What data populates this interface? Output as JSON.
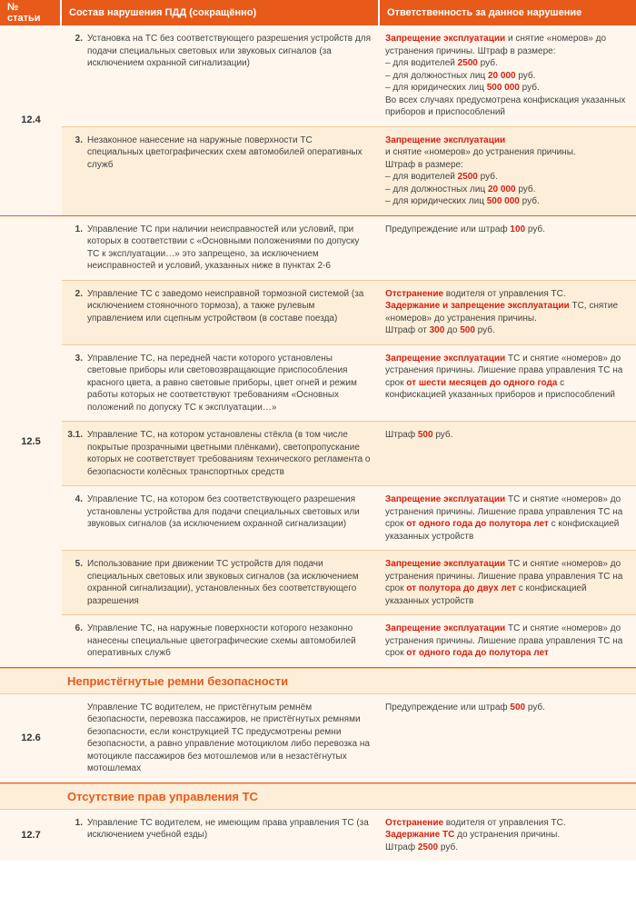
{
  "headers": {
    "article": "№ статьи",
    "violation": "Состав нарушения ПДД (сокращённо)",
    "responsibility": "Ответственность за данное нарушение"
  },
  "articles": [
    {
      "num": "12.4",
      "rows": [
        {
          "n": "2.",
          "alt": false,
          "vio": "Установка на ТС без соответствующего разрешения устройств для подачи специальных световых или звуковых сигналов (за исключением охранной сигнализации)",
          "resp": "<span class='red'>Запрещение эксплуатации</span> и снятие «номеров» до устранения причины. Штраф в размере:<br>– для водителей <span class='red'>2500</span> руб.<br>– для должностных лиц <span class='red'>20 000</span> руб.<br>– для юридических лиц <span class='red'>500 000</span> руб.<br>Во всех случаях предусмотрена конфискация указанных приборов и приспособлений"
        },
        {
          "n": "3.",
          "alt": true,
          "vio": "Незаконное нанесение на наружные поверхности ТС специальных цветографических схем автомобилей оперативных служб",
          "resp": "<span class='red'>Запрещение эксплуатации</span><br>и снятие «номеров» до устранения причины.<br>Штраф в размере:<br>– для водителей <span class='red'>2500</span> руб.<br>– для должностных лиц <span class='red'>20 000</span> руб.<br>– для юридических лиц <span class='red'>500 000</span> руб."
        }
      ]
    },
    {
      "num": "12.5",
      "rows": [
        {
          "n": "1.",
          "alt": false,
          "vio": "Управление ТС при наличии неисправностей или условий, при которых в соответствии с «Основными положениями по допуску ТС к эксплуатации…» это запрещено, за исключением неисправностей и условий, указанных ниже в пунктах 2-6",
          "resp": "Предупреждение или штраф <span class='red'>100</span> руб."
        },
        {
          "n": "2.",
          "alt": true,
          "vio": "Управление ТС с заведомо неисправной тормозной системой (за исключением стояночного тормоза), а также рулевым управлением или сцепным устройством (в составе поезда)",
          "resp": "<span class='red'>Отстранение</span> водителя от управления ТС.<br><span class='red'>Задержание и запрещение эксплуатации</span> ТС, снятие «номеров» до устранения причины.<br>Штраф от <span class='red'>300</span> до <span class='red'>500</span> руб."
        },
        {
          "n": "3.",
          "alt": false,
          "vio": "Управление ТС, на передней части которого установлены световые приборы или световозвращающие приспособления красного цвета, а равно световые приборы, цвет огней и режим работы которых не соответствуют требованиям «Основных положений по допуску ТС к эксплуатации…»",
          "resp": "<span class='red'>Запрещение эксплуатации</span> ТС и снятие «номеров» до устранения причины. Лишение права управления ТС на срок <span class='red'>от шести месяцев до одного года</span> с конфискацией указанных приборов и приспособлений"
        },
        {
          "n": "3.1.",
          "alt": true,
          "vio": "Управление ТС, на котором установлены стёкла (в том числе покрытые прозрачными цветными плёнками), светопропускание которых не соответствует требованиям технического регламента о безопасности колёсных транспортных средств",
          "resp": "Штраф <span class='red'>500</span> руб."
        },
        {
          "n": "4.",
          "alt": false,
          "vio": "Управление ТС, на котором без соответствующего разрешения установлены устройства для подачи специальных световых или звуковых сигналов (за исключением охранной сигнализации)",
          "resp": "<span class='red'>Запрещение эксплуатации</span> ТС и снятие «номеров» до устранения причины. Лишение права управления ТС на срок <span class='red'>от одного года до полутора лет</span> с конфискацией указанных устройств"
        },
        {
          "n": "5.",
          "alt": true,
          "vio": "Использование при движении ТС устройств для подачи специальных световых или звуковых сигналов (за исключением охранной сигнализации), установленных без соответствующего разрешения",
          "resp": "<span class='red'>Запрещение эксплуатации</span> ТС и снятие «номеров» до устранения причины. Лишение права управления ТС на срок <span class='red'>от полутора до двух лет</span> с конфискацией указанных устройств"
        },
        {
          "n": "6.",
          "alt": false,
          "vio": "Управление ТС, на наружные поверхности которого незаконно нанесены специальные цветографические схемы автомобилей оперативных служб",
          "resp": "<span class='red'>Запрещение эксплуатации</span> ТС и снятие «номеров» до устранения причины. Лишение права управления ТС на срок <span class='red'>от одного года до полутора лет</span>"
        }
      ]
    }
  ],
  "section1_title": "Непристёгнутые ремни безопасности",
  "article12_6": {
    "num": "12.6",
    "row": {
      "vio": "Управление ТС водителем, не пристёгнутым ремнём безопасности, перевозка пассажиров, не пристёгнутых ремнями безопасности, если конструкцией ТС предусмотрены ремни безопасности, а равно управление мотоциклом либо перевозка на мотоцикле пассажиров без мотошлемов или в незастёгнутых мотошлемах",
      "resp": "Предупреждение или штраф <span class='red'>500</span> руб."
    }
  },
  "section2_title": "Отсутствие прав управления ТС",
  "article12_7": {
    "num": "12.7",
    "row": {
      "n": "1.",
      "vio": "Управление ТС водителем, не имеющим права управления ТС (за исключением учебной езды)",
      "resp": "<span class='red'>Отстранение</span> водителя от управления ТС.<br><span class='red'>Задержание ТС</span> до устранения причины.<br>Штраф <span class='red'>2500</span> руб."
    }
  }
}
